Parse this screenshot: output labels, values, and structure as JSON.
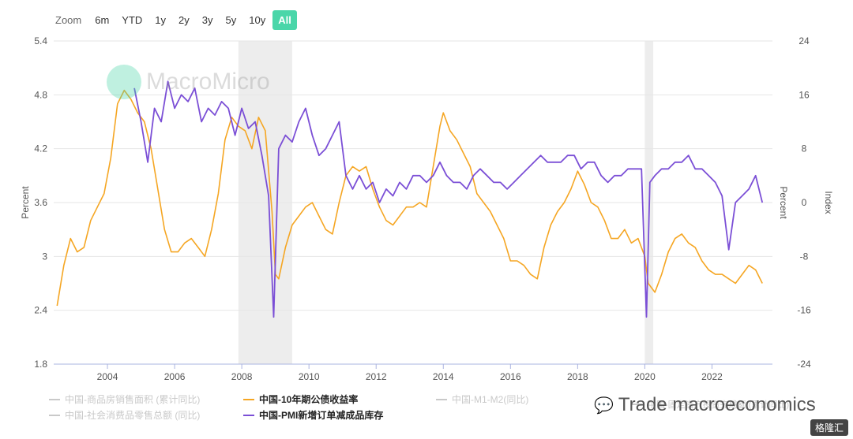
{
  "zoom": {
    "label": "Zoom",
    "buttons": [
      "6m",
      "YTD",
      "1y",
      "2y",
      "3y",
      "5y",
      "10y",
      "All"
    ],
    "active": "All"
  },
  "watermark": {
    "text": "MacroMicro"
  },
  "footer": {
    "icon": "wechat-icon",
    "text": "Trade macroeconomics"
  },
  "badge": {
    "text": "格隆汇"
  },
  "legend": [
    {
      "label": "中国-商品房销售面积 (累计同比)",
      "enabled": false,
      "color": "#c9c9c9"
    },
    {
      "label": "中国-社会消费品零售总额 (同比)",
      "enabled": false,
      "color": "#c9c9c9"
    },
    {
      "label": "中国-10年期公债收益率",
      "enabled": true,
      "color": "#f5a623"
    },
    {
      "label": "中国-PMI新增订单减成品库存",
      "enabled": true,
      "color": "#7b4fd6"
    },
    {
      "label": "中国-M1-M2(同比)",
      "enabled": false,
      "color": "#c9c9c9"
    },
    {
      "label": "中国-固定资产投资完成额 (累计同比)",
      "enabled": false,
      "color": "#c9c9c9"
    }
  ],
  "chart_data": {
    "type": "line",
    "ylabel_left": "Percent",
    "ylabel_right": "Percent",
    "ylabel_right_outer": "Index",
    "x_ticks": [
      "2004",
      "2006",
      "2008",
      "2010",
      "2012",
      "2014",
      "2016",
      "2018",
      "2020",
      "2022"
    ],
    "xlim": [
      2002.4,
      2023.8
    ],
    "y_left_ticks": [
      "5.4",
      "4.8",
      "4.2",
      "3.6",
      "3",
      "2.4",
      "1.8"
    ],
    "ylim_left": [
      1.8,
      5.4
    ],
    "y_right_ticks": [
      "24",
      "16",
      "8",
      "0",
      "-8",
      "-16",
      "-24"
    ],
    "ylim_right": [
      -24,
      24
    ],
    "grid": true,
    "recession_bands": [
      [
        2007.9,
        2009.5
      ],
      [
        2020.0,
        2020.25
      ]
    ],
    "series": [
      {
        "name": "中国-10年期公债收益率",
        "axis": "left",
        "color": "#f5a623",
        "x": [
          2002.5,
          2002.7,
          2002.9,
          2003.1,
          2003.3,
          2003.5,
          2003.7,
          2003.9,
          2004.1,
          2004.3,
          2004.5,
          2004.7,
          2004.9,
          2005.1,
          2005.3,
          2005.5,
          2005.7,
          2005.9,
          2006.1,
          2006.3,
          2006.5,
          2006.7,
          2006.9,
          2007.1,
          2007.3,
          2007.5,
          2007.7,
          2007.9,
          2008.1,
          2008.3,
          2008.5,
          2008.7,
          2008.9,
          2009.0,
          2009.1,
          2009.3,
          2009.5,
          2009.7,
          2009.9,
          2010.1,
          2010.3,
          2010.5,
          2010.7,
          2010.9,
          2011.1,
          2011.3,
          2011.5,
          2011.7,
          2011.9,
          2012.1,
          2012.3,
          2012.5,
          2012.7,
          2012.9,
          2013.1,
          2013.3,
          2013.5,
          2013.7,
          2013.9,
          2014.0,
          2014.2,
          2014.4,
          2014.6,
          2014.8,
          2015.0,
          2015.2,
          2015.4,
          2015.6,
          2015.8,
          2016.0,
          2016.2,
          2016.4,
          2016.6,
          2016.8,
          2017.0,
          2017.2,
          2017.4,
          2017.6,
          2017.8,
          2018.0,
          2018.2,
          2018.4,
          2018.6,
          2018.8,
          2019.0,
          2019.2,
          2019.4,
          2019.6,
          2019.8,
          2020.0,
          2020.1,
          2020.3,
          2020.5,
          2020.7,
          2020.9,
          2021.1,
          2021.3,
          2021.5,
          2021.7,
          2021.9,
          2022.1,
          2022.3,
          2022.5,
          2022.7,
          2022.9,
          2023.1,
          2023.3,
          2023.5
        ],
        "y": [
          2.45,
          2.9,
          3.2,
          3.05,
          3.1,
          3.4,
          3.55,
          3.7,
          4.1,
          4.7,
          4.85,
          4.75,
          4.6,
          4.5,
          4.2,
          3.75,
          3.3,
          3.05,
          3.05,
          3.15,
          3.2,
          3.1,
          3.0,
          3.3,
          3.7,
          4.3,
          4.55,
          4.45,
          4.4,
          4.2,
          4.55,
          4.4,
          3.5,
          2.8,
          2.75,
          3.1,
          3.35,
          3.45,
          3.55,
          3.6,
          3.45,
          3.3,
          3.25,
          3.6,
          3.9,
          4.0,
          3.95,
          4.0,
          3.75,
          3.55,
          3.4,
          3.35,
          3.45,
          3.55,
          3.55,
          3.6,
          3.55,
          4.0,
          4.45,
          4.6,
          4.4,
          4.3,
          4.15,
          4.0,
          3.7,
          3.6,
          3.5,
          3.35,
          3.2,
          2.95,
          2.95,
          2.9,
          2.8,
          2.75,
          3.1,
          3.35,
          3.5,
          3.6,
          3.75,
          3.95,
          3.8,
          3.6,
          3.55,
          3.4,
          3.2,
          3.2,
          3.3,
          3.15,
          3.2,
          3.0,
          2.7,
          2.6,
          2.8,
          3.05,
          3.2,
          3.25,
          3.15,
          3.1,
          2.95,
          2.85,
          2.8,
          2.8,
          2.75,
          2.7,
          2.8,
          2.9,
          2.85,
          2.7
        ]
      },
      {
        "name": "中国-PMI新增订单减成品库存",
        "axis": "right",
        "color": "#7b4fd6",
        "x": [
          2004.8,
          2005.0,
          2005.2,
          2005.4,
          2005.6,
          2005.8,
          2006.0,
          2006.2,
          2006.4,
          2006.6,
          2006.8,
          2007.0,
          2007.2,
          2007.4,
          2007.6,
          2007.8,
          2008.0,
          2008.2,
          2008.4,
          2008.6,
          2008.8,
          2008.95,
          2009.1,
          2009.3,
          2009.5,
          2009.7,
          2009.9,
          2010.1,
          2010.3,
          2010.5,
          2010.7,
          2010.9,
          2011.1,
          2011.3,
          2011.5,
          2011.7,
          2011.9,
          2012.1,
          2012.3,
          2012.5,
          2012.7,
          2012.9,
          2013.1,
          2013.3,
          2013.5,
          2013.7,
          2013.9,
          2014.1,
          2014.3,
          2014.5,
          2014.7,
          2014.9,
          2015.1,
          2015.3,
          2015.5,
          2015.7,
          2015.9,
          2016.1,
          2016.3,
          2016.5,
          2016.7,
          2016.9,
          2017.1,
          2017.3,
          2017.5,
          2017.7,
          2017.9,
          2018.1,
          2018.3,
          2018.5,
          2018.7,
          2018.9,
          2019.1,
          2019.3,
          2019.5,
          2019.7,
          2019.9,
          2020.05,
          2020.15,
          2020.3,
          2020.5,
          2020.7,
          2020.9,
          2021.1,
          2021.3,
          2021.5,
          2021.7,
          2021.9,
          2022.1,
          2022.3,
          2022.5,
          2022.7,
          2022.9,
          2023.1,
          2023.3,
          2023.5
        ],
        "y": [
          17,
          12,
          6,
          14,
          12,
          18,
          14,
          16,
          15,
          17,
          12,
          14,
          13,
          15,
          14,
          10,
          14,
          11,
          12,
          7,
          1,
          -17,
          8,
          10,
          9,
          12,
          14,
          10,
          7,
          8,
          10,
          12,
          4,
          2,
          4,
          2,
          3,
          0,
          2,
          1,
          3,
          2,
          4,
          4,
          3,
          4,
          6,
          4,
          3,
          3,
          2,
          4,
          5,
          4,
          3,
          3,
          2,
          3,
          4,
          5,
          6,
          7,
          6,
          6,
          6,
          7,
          7,
          5,
          6,
          6,
          4,
          3,
          4,
          4,
          5,
          5,
          5,
          -17,
          3,
          4,
          5,
          5,
          6,
          6,
          7,
          5,
          5,
          4,
          3,
          1,
          -7,
          0,
          1,
          2,
          4,
          0
        ]
      }
    ]
  }
}
